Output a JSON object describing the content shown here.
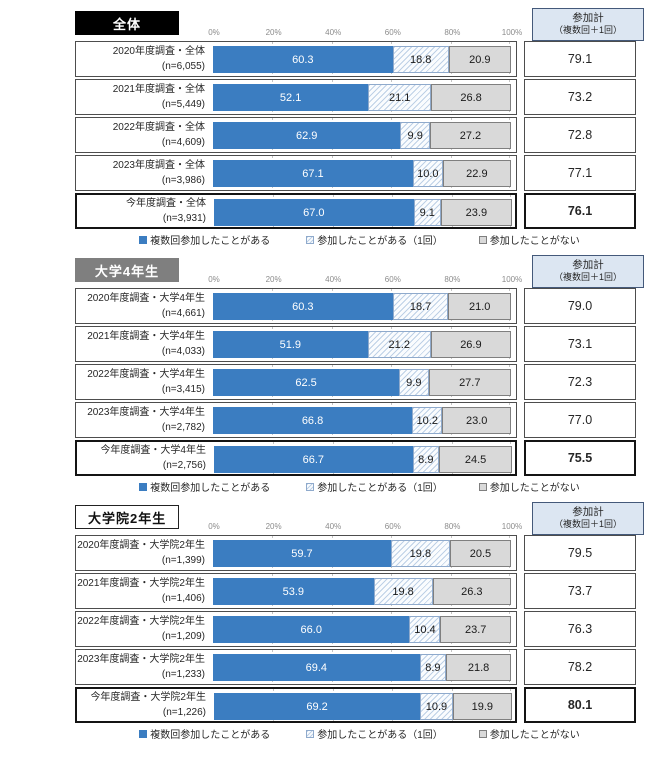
{
  "axis_ticks": [
    "0%",
    "20%",
    "40%",
    "60%",
    "80%",
    "100%"
  ],
  "summary_header": {
    "line1": "参加計",
    "line2": "（複数回＋1回）"
  },
  "legend": {
    "multiple": "複数回参加したことがある",
    "once": "参加したことがある（1回）",
    "never": "参加したことがない"
  },
  "colors": {
    "multiple": "#3b7dc1",
    "once_hatch": "#bdd0e6",
    "never": "#d9d9d9",
    "summary_header_bg": "#dce6f2"
  },
  "chart_data": [
    {
      "type": "bar",
      "subtype": "stacked-horizontal",
      "title": "全体",
      "xlim": [
        0,
        100
      ],
      "x_ticks": [
        "0%",
        "20%",
        "40%",
        "60%",
        "80%",
        "100%"
      ],
      "categories": [
        "2020年度調査・全体",
        "2021年度調査・全体",
        "2022年度調査・全体",
        "2023年度調査・全体",
        "今年度調査・全体"
      ],
      "n_labels": [
        "(n=6,055)",
        "(n=5,449)",
        "(n=4,609)",
        "(n=3,986)",
        "(n=3,931)"
      ],
      "series": [
        {
          "name": "複数回参加したことがある",
          "values": [
            60.3,
            52.1,
            62.9,
            67.1,
            67.0
          ],
          "labels": [
            "60.3",
            "52.1",
            "62.9",
            "67.1",
            "67.0"
          ]
        },
        {
          "name": "参加したことがある（1回）",
          "values": [
            18.8,
            21.1,
            9.9,
            10.0,
            9.1
          ],
          "labels": [
            "18.8",
            "21.1",
            "9.9",
            "10.0",
            "9.1"
          ]
        },
        {
          "name": "参加したことがない",
          "values": [
            20.9,
            26.8,
            27.2,
            22.9,
            23.9
          ],
          "labels": [
            "20.9",
            "26.8",
            "27.2",
            "22.9",
            "23.9"
          ]
        }
      ],
      "totals": [
        "79.1",
        "73.2",
        "72.8",
        "77.1",
        "76.1"
      ]
    },
    {
      "type": "bar",
      "subtype": "stacked-horizontal",
      "title": "大学4年生",
      "xlim": [
        0,
        100
      ],
      "x_ticks": [
        "0%",
        "20%",
        "40%",
        "60%",
        "80%",
        "100%"
      ],
      "categories": [
        "2020年度調査・大学4年生",
        "2021年度調査・大学4年生",
        "2022年度調査・大学4年生",
        "2023年度調査・大学4年生",
        "今年度調査・大学4年生"
      ],
      "n_labels": [
        "(n=4,661)",
        "(n=4,033)",
        "(n=3,415)",
        "(n=2,782)",
        "(n=2,756)"
      ],
      "series": [
        {
          "name": "複数回参加したことがある",
          "values": [
            60.3,
            51.9,
            62.5,
            66.8,
            66.7
          ],
          "labels": [
            "60.3",
            "51.9",
            "62.5",
            "66.8",
            "66.7"
          ]
        },
        {
          "name": "参加したことがある（1回）",
          "values": [
            18.7,
            21.2,
            9.9,
            10.2,
            8.9
          ],
          "labels": [
            "18.7",
            "21.2",
            "9.9",
            "10.2",
            "8.9"
          ]
        },
        {
          "name": "参加したことがない",
          "values": [
            21.0,
            26.9,
            27.7,
            23.0,
            24.5
          ],
          "labels": [
            "21.0",
            "26.9",
            "27.7",
            "23.0",
            "24.5"
          ]
        }
      ],
      "totals": [
        "79.0",
        "73.1",
        "72.3",
        "77.0",
        "75.5"
      ]
    },
    {
      "type": "bar",
      "subtype": "stacked-horizontal",
      "title": "大学院2年生",
      "xlim": [
        0,
        100
      ],
      "x_ticks": [
        "0%",
        "20%",
        "40%",
        "60%",
        "80%",
        "100%"
      ],
      "categories": [
        "2020年度調査・大学院2年生",
        "2021年度調査・大学院2年生",
        "2022年度調査・大学院2年生",
        "2023年度調査・大学院2年生",
        "今年度調査・大学院2年生"
      ],
      "n_labels": [
        "(n=1,399)",
        "(n=1,406)",
        "(n=1,209)",
        "(n=1,233)",
        "(n=1,226)"
      ],
      "series": [
        {
          "name": "複数回参加したことがある",
          "values": [
            59.7,
            53.9,
            66.0,
            69.4,
            69.2
          ],
          "labels": [
            "59.7",
            "53.9",
            "66.0",
            "69.4",
            "69.2"
          ]
        },
        {
          "name": "参加したことがある（1回）",
          "values": [
            19.8,
            19.8,
            10.4,
            8.9,
            10.9
          ],
          "labels": [
            "19.8",
            "19.8",
            "10.4",
            "8.9",
            "10.9"
          ]
        },
        {
          "name": "参加したことがない",
          "values": [
            20.5,
            26.3,
            23.7,
            21.8,
            19.9
          ],
          "labels": [
            "20.5",
            "26.3",
            "23.7",
            "21.8",
            "19.9"
          ]
        }
      ],
      "totals": [
        "79.5",
        "73.7",
        "76.3",
        "78.2",
        "80.1"
      ]
    }
  ]
}
